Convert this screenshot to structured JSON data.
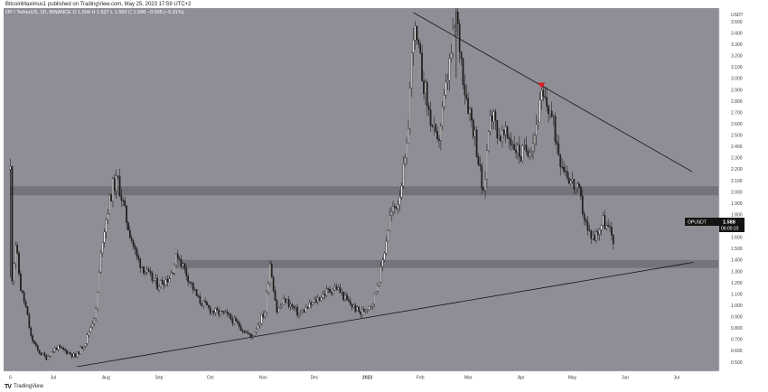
{
  "header": {
    "published_line": "BitcoinMaximus1 published on TradingView.com, May 25, 2023 17:59 UTC+2",
    "symbol_line": "OP / TetherUS, 1D, BINANCE  O 1.594  H 1.627  L 1.550  C 1.588  −0.005 (−0.31%)"
  },
  "footer": {
    "brand_mark": "TV",
    "brand_name": "TradingView"
  },
  "price_label": {
    "symbol": "OPUSDT",
    "value": "1.588",
    "countdown": "06:00:10"
  },
  "colors": {
    "background": "#8e8e96",
    "candle": "#ffffff",
    "zone": "#6f6f77",
    "marker": "#e31b1b",
    "trendline": "#141414"
  },
  "chart_data": {
    "type": "candlestick",
    "axis_unit": "USDT",
    "x_tick_labels": [
      "6",
      "Jul",
      "Aug",
      "Sep",
      "Oct",
      "Nov",
      "Dec",
      "2023",
      "Feb",
      "Mar",
      "Apr",
      "May",
      "Jun",
      "Jul"
    ],
    "x_tick_dates": [
      "2022-06-06",
      "2022-07-01",
      "2022-08-01",
      "2022-09-01",
      "2022-10-01",
      "2022-11-01",
      "2022-12-01",
      "2023-01-01",
      "2023-02-01",
      "2023-03-01",
      "2023-04-01",
      "2023-05-01",
      "2023-06-01",
      "2023-07-01"
    ],
    "y_ticks": [
      0.5,
      0.6,
      0.7,
      0.8,
      0.9,
      1.0,
      1.1,
      1.2,
      1.3,
      1.4,
      1.5,
      1.6,
      1.7,
      1.8,
      1.9,
      2.0,
      2.1,
      2.2,
      2.3,
      2.4,
      2.5,
      2.6,
      2.7,
      2.8,
      2.9,
      3.0,
      3.1,
      3.2,
      3.3,
      3.4,
      3.5
    ],
    "y_tick_labels": [
      "0.500",
      "0.600",
      "0.700",
      "0.800",
      "0.900",
      "1.000",
      "1.100",
      "1.200",
      "1.300",
      "1.400",
      "1.500",
      "1.600",
      "1.700",
      "1.800",
      "1.900",
      "2.000",
      "2.100",
      "2.200",
      "2.300",
      "2.400",
      "2.500",
      "2.600",
      "2.700",
      "2.800",
      "2.900",
      "3.000",
      "3.100",
      "3.200",
      "3.300",
      "3.400",
      "3.500"
    ],
    "ylim": [
      0.42,
      3.62
    ],
    "xlim": [
      "2022-06-02",
      "2023-07-26"
    ],
    "grid": false,
    "last_price": 1.588,
    "horizontal_zones": [
      {
        "from": 1.97,
        "to": 2.05
      },
      {
        "from": 1.33,
        "to": 1.4
      }
    ],
    "trendlines": [
      {
        "name": "descending resistance",
        "points": [
          [
            "2023-01-28",
            3.58
          ],
          [
            "2023-07-10",
            2.18
          ]
        ]
      },
      {
        "name": "ascending support",
        "points": [
          [
            "2022-07-15",
            0.46
          ],
          [
            "2023-07-11",
            1.38
          ]
        ]
      }
    ],
    "markers": [
      {
        "type": "down-triangle",
        "date": "2023-04-13",
        "price": 2.93
      }
    ],
    "price_path": [
      [
        "2022-06-06",
        2.2
      ],
      [
        "2022-06-07",
        1.25
      ],
      [
        "2022-06-09",
        1.55
      ],
      [
        "2022-06-12",
        1.15
      ],
      [
        "2022-06-15",
        0.98
      ],
      [
        "2022-06-18",
        0.72
      ],
      [
        "2022-06-22",
        0.6
      ],
      [
        "2022-06-27",
        0.54
      ],
      [
        "2022-07-03",
        0.63
      ],
      [
        "2022-07-08",
        0.6
      ],
      [
        "2022-07-14",
        0.55
      ],
      [
        "2022-07-20",
        0.68
      ],
      [
        "2022-07-26",
        0.95
      ],
      [
        "2022-07-30",
        1.6
      ],
      [
        "2022-08-02",
        1.85
      ],
      [
        "2022-08-05",
        2.05
      ],
      [
        "2022-08-08",
        2.1
      ],
      [
        "2022-08-13",
        1.75
      ],
      [
        "2022-08-19",
        1.42
      ],
      [
        "2022-08-25",
        1.28
      ],
      [
        "2022-08-31",
        1.18
      ],
      [
        "2022-09-07",
        1.25
      ],
      [
        "2022-09-12",
        1.45
      ],
      [
        "2022-09-17",
        1.28
      ],
      [
        "2022-09-24",
        1.05
      ],
      [
        "2022-10-02",
        0.95
      ],
      [
        "2022-10-10",
        0.92
      ],
      [
        "2022-10-18",
        0.82
      ],
      [
        "2022-10-25",
        0.72
      ],
      [
        "2022-11-02",
        0.95
      ],
      [
        "2022-11-05",
        1.38
      ],
      [
        "2022-11-09",
        0.95
      ],
      [
        "2022-11-14",
        1.05
      ],
      [
        "2022-11-22",
        0.92
      ],
      [
        "2022-11-30",
        1.02
      ],
      [
        "2022-12-08",
        1.12
      ],
      [
        "2022-12-14",
        1.16
      ],
      [
        "2022-12-20",
        1.04
      ],
      [
        "2022-12-28",
        0.93
      ],
      [
        "2023-01-04",
        1.03
      ],
      [
        "2023-01-09",
        1.3
      ],
      [
        "2023-01-14",
        1.78
      ],
      [
        "2023-01-19",
        1.92
      ],
      [
        "2023-01-24",
        2.35
      ],
      [
        "2023-01-28",
        3.45
      ],
      [
        "2023-02-02",
        3.05
      ],
      [
        "2023-02-06",
        2.7
      ],
      [
        "2023-02-11",
        2.4
      ],
      [
        "2023-02-16",
        2.9
      ],
      [
        "2023-02-22",
        3.55
      ],
      [
        "2023-02-27",
        2.92
      ],
      [
        "2023-03-05",
        2.5
      ],
      [
        "2023-03-10",
        1.95
      ],
      [
        "2023-03-14",
        2.75
      ],
      [
        "2023-03-19",
        2.5
      ],
      [
        "2023-03-25",
        2.48
      ],
      [
        "2023-04-01",
        2.32
      ],
      [
        "2023-04-08",
        2.45
      ],
      [
        "2023-04-13",
        2.82
      ],
      [
        "2023-04-18",
        2.72
      ],
      [
        "2023-04-24",
        2.3
      ],
      [
        "2023-04-30",
        2.1
      ],
      [
        "2023-05-05",
        1.98
      ],
      [
        "2023-05-10",
        1.65
      ],
      [
        "2023-05-14",
        1.6
      ],
      [
        "2023-05-19",
        1.75
      ],
      [
        "2023-05-25",
        1.59
      ]
    ]
  }
}
